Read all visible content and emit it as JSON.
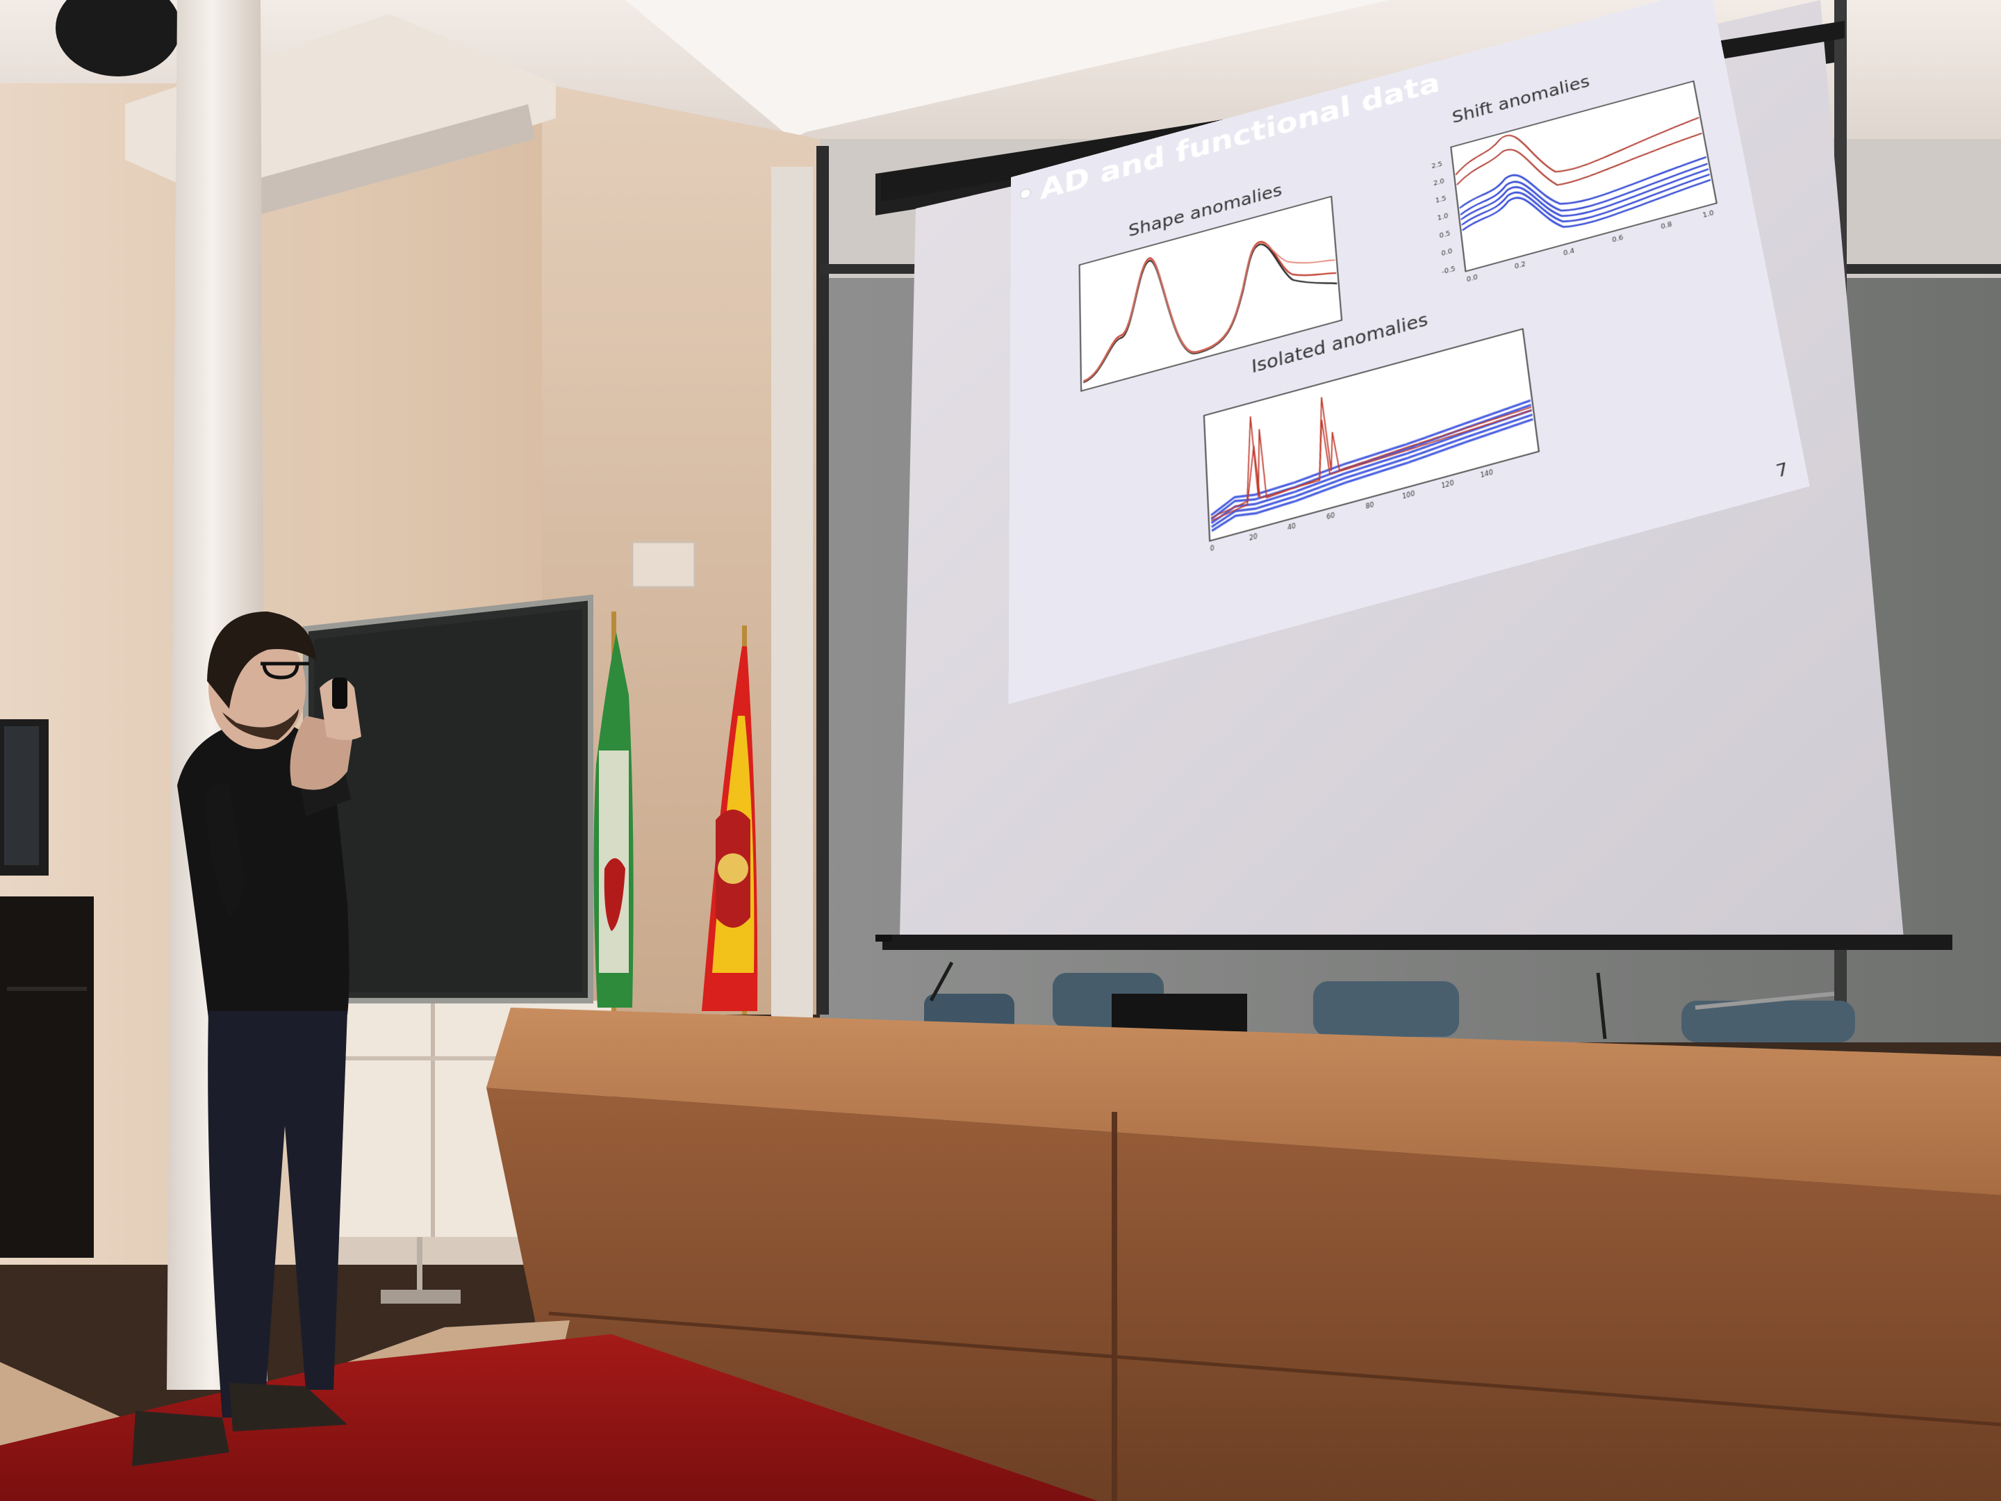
{
  "slide": {
    "title": "AD and functional data",
    "page_number": "7",
    "panels": [
      {
        "title": "Shape anomalies",
        "chart_data": {
          "type": "line",
          "title": "Shape anomalies",
          "xlabel": "",
          "ylabel": "",
          "series": [
            {
              "color": "#1a1a1a",
              "role": "normal curves"
            },
            {
              "color": "#c0392b",
              "role": "anomalous curves"
            }
          ],
          "legend": "none",
          "grid": false
        }
      },
      {
        "title": "Shift anomalies",
        "chart_data": {
          "type": "line",
          "title": "Shift anomalies",
          "xlabel": "",
          "ylabel": "",
          "xlim": [
            0.0,
            1.0
          ],
          "ylim": [
            -0.5,
            2.5
          ],
          "xticks": [
            "0.0",
            "0.2",
            "0.4",
            "0.6",
            "0.8",
            "1.0"
          ],
          "yticks": [
            "2.5",
            "2.0",
            "1.5",
            "1.0",
            "0.5",
            "0.0",
            "-0.5"
          ],
          "series": [
            {
              "color": "#3a4fd6",
              "role": "normal curves"
            },
            {
              "color": "#b03a2e",
              "role": "shifted anomalous curves"
            }
          ],
          "legend": "none",
          "grid": false
        }
      },
      {
        "title": "Isolated anomalies",
        "chart_data": {
          "type": "line",
          "title": "Isolated anomalies",
          "xlabel": "",
          "ylabel": "",
          "xticks": [
            "0",
            "20",
            "40",
            "60",
            "80",
            "100",
            "120",
            "140"
          ],
          "series": [
            {
              "color": "#4a5fe0",
              "role": "normal curves"
            },
            {
              "color": "#c0392b",
              "role": "anomalous curves with isolated spikes"
            }
          ],
          "legend": "none",
          "grid": false
        }
      }
    ]
  }
}
